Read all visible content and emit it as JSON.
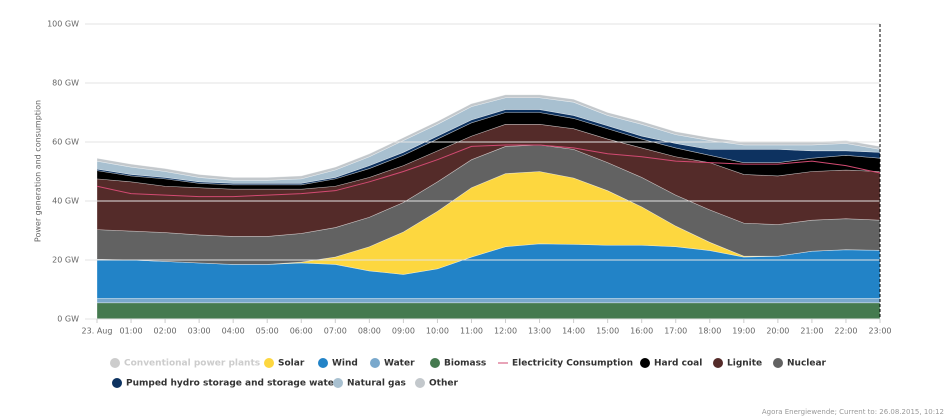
{
  "chart_data": {
    "type": "stacked-area",
    "y_label": "Power generation and consumption",
    "footer": "Agora Energiewende; Current to: 26.08.2015, 10:12",
    "categories": [
      "23. Aug",
      "01:00",
      "02:00",
      "03:00",
      "04:00",
      "05:00",
      "06:00",
      "07:00",
      "08:00",
      "09:00",
      "10:00",
      "11:00",
      "12:00",
      "13:00",
      "14:00",
      "15:00",
      "16:00",
      "17:00",
      "18:00",
      "19:00",
      "20:00",
      "21:00",
      "22:00",
      "23:00"
    ],
    "ylim": [
      0,
      100
    ],
    "yticks": [
      {
        "value": 0,
        "label": "0 GW"
      },
      {
        "value": 20,
        "label": "20 GW"
      },
      {
        "value": 40,
        "label": "40 GW"
      },
      {
        "value": 60,
        "label": "60 GW"
      },
      {
        "value": 80,
        "label": "80 GW"
      },
      {
        "value": 100,
        "label": "100 GW"
      }
    ],
    "grid": true,
    "inactive_series": [
      {
        "name": "Conventional power plants",
        "color": "#cccccc"
      }
    ],
    "series": [
      {
        "name": "Solar",
        "color": "#fdd73f",
        "values": [
          0,
          0,
          0,
          0,
          0,
          0,
          0.3,
          2.5,
          8.2,
          14.4,
          19.5,
          23.5,
          24.8,
          24.5,
          22.5,
          18.5,
          13,
          7,
          2.8,
          0.3,
          0,
          0,
          0,
          0
        ]
      },
      {
        "name": "Wind",
        "color": "#2283c7",
        "values": [
          13.3,
          13,
          12.5,
          12,
          11.5,
          11.5,
          12,
          11.5,
          9.3,
          8.1,
          10,
          14,
          17.5,
          18.5,
          18.3,
          18,
          18,
          17.5,
          16.2,
          14,
          14.3,
          16,
          16.5,
          16.3
        ]
      },
      {
        "name": "Water",
        "color": "#79a8cc",
        "values": [
          1.5,
          1.5,
          1.5,
          1.5,
          1.5,
          1.5,
          1.5,
          1.5,
          1.5,
          1.5,
          1.5,
          1.5,
          1.5,
          1.5,
          1.5,
          1.5,
          1.5,
          1.5,
          1.5,
          1.5,
          1.5,
          1.5,
          1.5,
          1.5
        ]
      },
      {
        "name": "Biomass",
        "color": "#457a4f",
        "values": [
          5.5,
          5.5,
          5.5,
          5.5,
          5.5,
          5.5,
          5.5,
          5.5,
          5.5,
          5.5,
          5.5,
          5.5,
          5.5,
          5.5,
          5.5,
          5.5,
          5.5,
          5.5,
          5.5,
          5.5,
          5.5,
          5.5,
          5.5,
          5.5
        ]
      },
      {
        "name": "Electricity Consumption",
        "type": "line",
        "color": "#d24a72",
        "values": [
          45,
          42.5,
          42,
          41.5,
          41.5,
          42,
          42.5,
          43.5,
          46.5,
          50,
          54,
          58.5,
          59,
          59,
          58,
          56,
          55,
          53.5,
          53,
          52.5,
          52.5,
          53.5,
          52,
          49.5
        ]
      },
      {
        "name": "Hard coal",
        "color": "#000000",
        "values": [
          2.8,
          2,
          2.5,
          1.5,
          1.5,
          1.5,
          1.5,
          2.5,
          3,
          3.5,
          4,
          4.5,
          4,
          4,
          3.5,
          3.5,
          3,
          3,
          2.5,
          4,
          4.5,
          4.5,
          5,
          4.5
        ]
      },
      {
        "name": "Lignite",
        "color": "#542b29",
        "values": [
          17.2,
          16.7,
          15.7,
          16,
          16,
          16,
          15,
          14,
          13.5,
          12.5,
          10.5,
          8,
          7.5,
          7,
          7,
          8,
          10,
          13,
          16,
          16.5,
          16.5,
          16.5,
          16.5,
          16.5
        ]
      },
      {
        "name": "Nuclear",
        "color": "#626262",
        "values": [
          10,
          9.8,
          9.8,
          9.5,
          9.5,
          9.5,
          9.7,
          10,
          10,
          10,
          10,
          9.5,
          9.2,
          9,
          9.7,
          9.5,
          10,
          10.5,
          11,
          11.2,
          10.7,
          10.5,
          10.5,
          10.2
        ]
      },
      {
        "name": "Pumped hydro storage and storage wate",
        "color": "#0d3260",
        "values": [
          0.5,
          0.5,
          0.5,
          0.5,
          0.5,
          0.5,
          0.5,
          0.5,
          1,
          1,
          1,
          1,
          1,
          1,
          1,
          1,
          1,
          1.5,
          2,
          4.5,
          4.5,
          2.5,
          1.5,
          2
        ]
      },
      {
        "name": "Natural gas",
        "color": "#a8c0d0",
        "values": [
          2.7,
          2.5,
          2,
          1.5,
          1,
          1,
          1.5,
          2.5,
          3,
          4,
          4,
          4.5,
          4,
          4,
          4.5,
          3.5,
          4,
          3,
          3,
          1.5,
          1.5,
          2,
          2.5,
          1
        ]
      },
      {
        "name": "Other",
        "color": "#c3c8cc",
        "values": [
          1,
          1,
          1,
          1,
          1,
          1,
          1,
          1,
          1,
          1,
          1,
          1,
          1,
          1,
          1,
          1,
          1,
          1,
          1,
          1,
          1,
          1,
          1,
          1
        ]
      }
    ]
  }
}
